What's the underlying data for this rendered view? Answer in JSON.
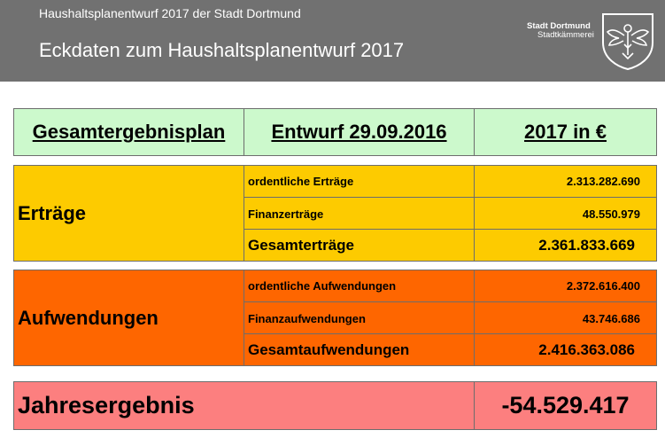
{
  "header": {
    "supertitle": "Haushaltsplanentwurf 2017 der Stadt Dortmund",
    "title": "Eckdaten zum Haushaltsplanentwurf 2017",
    "logo_city": "Stadt Dortmund",
    "logo_dept": "Stadtkämmerei",
    "crest_icon": "eagle-crest-icon",
    "background": "#717171"
  },
  "table": {
    "header": {
      "col1": "Gesamtergebnisplan",
      "col2": "Entwurf 29.09.2016",
      "col3": "2017 in €",
      "color": "#ccf9cc"
    },
    "ertraege": {
      "label": "Erträge",
      "color": "#fdcb00",
      "rows": [
        {
          "label": "ordentliche Erträge",
          "value": "2.313.282.690"
        },
        {
          "label": "Finanzerträge",
          "value": "48.550.979"
        },
        {
          "label": "Gesamterträge",
          "value": "2.361.833.669"
        }
      ]
    },
    "aufwendungen": {
      "label": "Aufwendungen",
      "color": "#fe6600",
      "rows": [
        {
          "label": "ordentliche Aufwendungen",
          "value": "2.372.616.400"
        },
        {
          "label": "Finanzaufwendungen",
          "value": "43.746.686"
        },
        {
          "label": "Gesamtaufwendungen",
          "value": "2.416.363.086"
        }
      ]
    },
    "jahresergebnis": {
      "label": "Jahresergebnis",
      "value": "-54.529.417",
      "color": "#fc7f7f"
    }
  }
}
